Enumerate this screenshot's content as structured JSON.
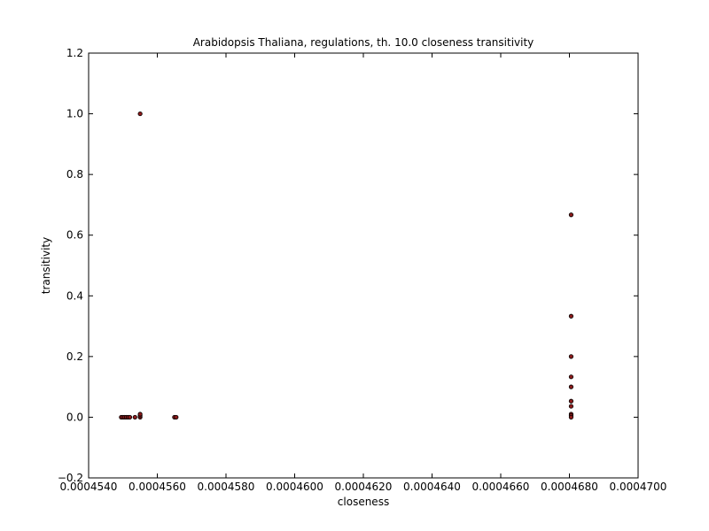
{
  "chart_data": {
    "type": "scatter",
    "title": "Arabidopsis Thaliana, regulations, th. 10.0 closeness transitivity",
    "xlabel": "closeness",
    "ylabel": "transitivity",
    "xlim": [
      0.000454,
      0.00047
    ],
    "ylim": [
      -0.2,
      1.2
    ],
    "xticks": [
      0.000454,
      0.000456,
      0.000458,
      0.00046,
      0.000462,
      0.000464,
      0.000466,
      0.000468,
      0.00047
    ],
    "xtick_labels": [
      "0.0004540",
      "0.0004560",
      "0.0004580",
      "0.0004600",
      "0.0004620",
      "0.0004640",
      "0.0004660",
      "0.0004680",
      "0.0004700"
    ],
    "yticks": [
      -0.2,
      0.0,
      0.2,
      0.4,
      0.6,
      0.8,
      1.0,
      1.2
    ],
    "ytick_labels": [
      "−0.2",
      "0.0",
      "0.2",
      "0.4",
      "0.6",
      "0.8",
      "1.0",
      "1.2"
    ],
    "grid": false,
    "marker_color": "#8b1a1a",
    "marker_edge": "#000000",
    "points": [
      {
        "x": 0.0004555,
        "y": 1.0
      },
      {
        "x": 0.00045495,
        "y": 0.0
      },
      {
        "x": 0.000455,
        "y": 0.0
      },
      {
        "x": 0.00045505,
        "y": 0.0
      },
      {
        "x": 0.0004551,
        "y": 0.0
      },
      {
        "x": 0.00045515,
        "y": 0.0
      },
      {
        "x": 0.0004552,
        "y": 0.0
      },
      {
        "x": 0.00045535,
        "y": 0.0
      },
      {
        "x": 0.0004555,
        "y": 0.0
      },
      {
        "x": 0.0004555,
        "y": 0.005
      },
      {
        "x": 0.0004555,
        "y": 0.01
      },
      {
        "x": 0.0004565,
        "y": 0.0
      },
      {
        "x": 0.00045655,
        "y": 0.0
      },
      {
        "x": 0.00046805,
        "y": 0.667
      },
      {
        "x": 0.00046805,
        "y": 0.333
      },
      {
        "x": 0.00046805,
        "y": 0.2
      },
      {
        "x": 0.00046805,
        "y": 0.133
      },
      {
        "x": 0.00046805,
        "y": 0.1
      },
      {
        "x": 0.00046805,
        "y": 0.053
      },
      {
        "x": 0.00046805,
        "y": 0.036
      },
      {
        "x": 0.00046805,
        "y": 0.01
      },
      {
        "x": 0.00046805,
        "y": 0.005
      },
      {
        "x": 0.00046805,
        "y": 0.0
      }
    ]
  }
}
